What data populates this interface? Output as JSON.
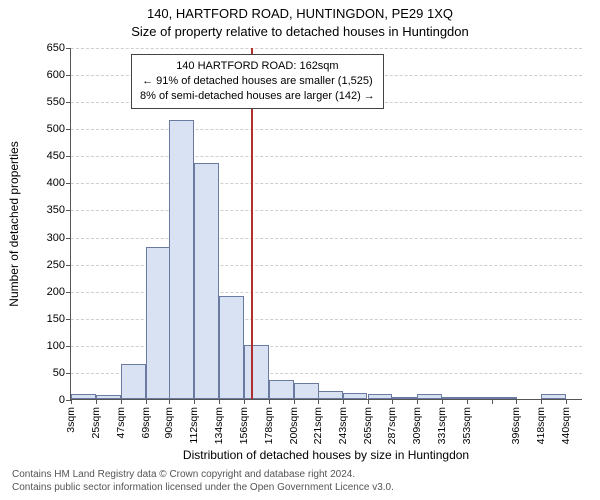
{
  "header": {
    "title1": "140, HARTFORD ROAD, HUNTINGDON, PE29 1XQ",
    "title2": "Size of property relative to detached houses in Huntingdon"
  },
  "chart": {
    "type": "histogram",
    "ylabel": "Number of detached properties",
    "xlabel": "Distribution of detached houses by size in Huntingdon",
    "ylim": [
      0,
      650
    ],
    "ytick_step": 50,
    "y_ticks": [
      0,
      50,
      100,
      150,
      200,
      250,
      300,
      350,
      400,
      450,
      500,
      550,
      600,
      650
    ],
    "bar_fill": "#d8e2f2",
    "bar_border": "#6a7aa0",
    "grid_color": "#cfcfcf",
    "axis_color": "#555555",
    "marker_color": "#b03030",
    "marker_value_sqm": 162,
    "bin_width_sqm": 21.9,
    "bins": [
      {
        "label": "3sqm",
        "start": 3,
        "value": 10
      },
      {
        "label": "25sqm",
        "start": 25,
        "value": 8
      },
      {
        "label": "47sqm",
        "start": 47,
        "value": 65
      },
      {
        "label": "69sqm",
        "start": 69,
        "value": 280
      },
      {
        "label": "90sqm",
        "start": 90,
        "value": 515
      },
      {
        "label": "112sqm",
        "start": 112,
        "value": 435
      },
      {
        "label": "134sqm",
        "start": 134,
        "value": 190
      },
      {
        "label": "156sqm",
        "start": 156,
        "value": 100
      },
      {
        "label": "178sqm",
        "start": 178,
        "value": 35
      },
      {
        "label": "200sqm",
        "start": 200,
        "value": 30
      },
      {
        "label": "221sqm",
        "start": 221,
        "value": 15
      },
      {
        "label": "243sqm",
        "start": 243,
        "value": 12
      },
      {
        "label": "265sqm",
        "start": 265,
        "value": 10
      },
      {
        "label": "287sqm",
        "start": 287,
        "value": 4
      },
      {
        "label": "309sqm",
        "start": 309,
        "value": 10
      },
      {
        "label": "331sqm",
        "start": 331,
        "value": 2
      },
      {
        "label": "353sqm",
        "start": 353,
        "value": 2
      },
      {
        "label": "",
        "start": 375,
        "value": 2
      },
      {
        "label": "396sqm",
        "start": 396,
        "value": 0
      },
      {
        "label": "418sqm",
        "start": 418,
        "value": 10
      },
      {
        "label": "440sqm",
        "start": 440,
        "value": 0
      }
    ],
    "annotation": {
      "line1": "140 HARTFORD ROAD: 162sqm",
      "line2": "← 91% of detached houses are smaller (1,525)",
      "line3": "8% of semi-detached houses are larger (142) →"
    }
  },
  "footer": {
    "line1": "Contains HM Land Registry data © Crown copyright and database right 2024.",
    "line2": "Contains public sector information licensed under the Open Government Licence v3.0."
  }
}
